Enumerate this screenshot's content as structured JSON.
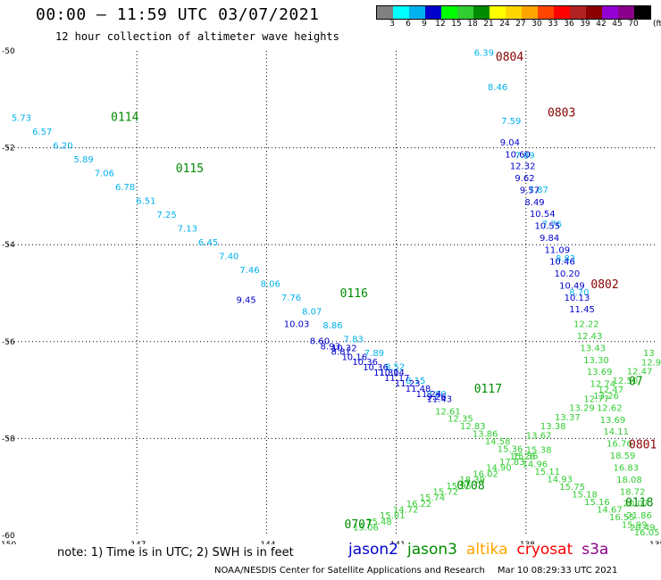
{
  "header": {
    "title": "00:00 – 11:59 UTC 03/07/2021",
    "subtitle": "12 hour collection of altimeter wave heights"
  },
  "legend": {
    "unit": "(ft)",
    "labels": [
      "3",
      "6",
      "9",
      "12",
      "15",
      "18",
      "21",
      "24",
      "27",
      "30",
      "33",
      "36",
      "39",
      "42",
      "45",
      "70"
    ],
    "colors": [
      "#808080",
      "#00ffff",
      "#00b2ee",
      "#0000cd",
      "#00ff00",
      "#32cd32",
      "#008b00",
      "#ffff00",
      "#ffd700",
      "#ffa500",
      "#ff4500",
      "#ff0000",
      "#b22222",
      "#8b0000",
      "#9400d3",
      "#8b008b",
      "#000000"
    ]
  },
  "map": {
    "lon_ticks": [
      "-150",
      "-147",
      "-144",
      "-141",
      "-138",
      "-135"
    ],
    "lat_ticks": [
      "-50",
      "-52",
      "-54",
      "-56",
      "-58",
      "-60"
    ],
    "lon_range": [
      -150,
      -135
    ],
    "lat_range": [
      -50,
      -60
    ],
    "time_labels": [
      {
        "text": "0114",
        "lon": -147.6,
        "lat": -51.45,
        "color": "#008b00"
      },
      {
        "text": "0115",
        "lon": -146.1,
        "lat": -52.5,
        "color": "#008b00"
      },
      {
        "text": "0116",
        "lon": -142.3,
        "lat": -55.08,
        "color": "#008b00"
      },
      {
        "text": "0117",
        "lon": -139.2,
        "lat": -57.05,
        "color": "#008b00"
      },
      {
        "text": "0804",
        "lon": -138.7,
        "lat": -50.2,
        "color": "#8b0000"
      },
      {
        "text": "0803",
        "lon": -137.5,
        "lat": -51.35,
        "color": "#8b0000"
      },
      {
        "text": "0802",
        "lon": -136.5,
        "lat": -54.9,
        "color": "#8b0000"
      },
      {
        "text": "0801",
        "lon": -134.7,
        "lat": -58.2,
        "color": "#8b0000"
      },
      {
        "text": "0708",
        "lon": -139.6,
        "lat": -59.05,
        "color": "#008b00"
      },
      {
        "text": "0707",
        "lon": -142.2,
        "lat": -59.85,
        "color": "#008b00"
      },
      {
        "text": "0118",
        "lon": -135.7,
        "lat": -59.4,
        "color": "#008b00"
      },
      {
        "text": "07",
        "lon": -134.7,
        "lat": -56.9,
        "color": "#008b00"
      }
    ],
    "tracks": [
      {
        "lon_start": -149.9,
        "lat_start": -51.45,
        "lon_end": -140.3,
        "lat_end": -57.15,
        "color": "#00b2ee",
        "values": [
          "5.73",
          "6.57",
          "6.20",
          "5.89",
          "7.06",
          "6.78",
          "6.51",
          "7.25",
          "7.13",
          "6.45",
          "7.40",
          "7.46",
          "8.06",
          "7.76",
          "8.07",
          "8.86",
          "7.83",
          "7.89",
          "8.52",
          "8.15",
          "8.80"
        ]
      },
      {
        "lon_start": -144.7,
        "lat_start": -55.2,
        "lon_end": -140.3,
        "lat_end": -57.2,
        "color": "#0000cd",
        "values": [
          "9.45",
          "10.03",
          "10.32",
          "10.14",
          "9.26"
        ]
      },
      {
        "lon_start": -143.0,
        "lat_start": -56.05,
        "lon_end": -140.3,
        "lat_end": -57.25,
        "color": "#0000cd",
        "values": [
          "8.60",
          "8.93",
          "8.81",
          "10.16",
          "10.36",
          "10.36",
          "11.30",
          "11.17",
          "11.23",
          "11.48",
          "11.24",
          "11.43"
        ]
      },
      {
        "lon_start": -140.1,
        "lat_start": -57.5,
        "lon_end": -135.5,
        "lat_end": -60.0,
        "color": "#32cd32",
        "values": [
          "12.61",
          "12.35",
          "12.83",
          "13.86",
          "14.58",
          "15.36",
          "15.26",
          "14.96",
          "15.11",
          "14.93",
          "15.75",
          "15.18",
          "15.16",
          "14.67",
          "16.55",
          "15.99",
          "16.05"
        ]
      },
      {
        "lon_start": -139.2,
        "lat_start": -50.1,
        "lon_end": -137.0,
        "lat_end": -55.05,
        "color": "#00b2ee",
        "values": [
          "6.39",
          "8.46",
          "7.59",
          "7.89",
          "7.87",
          "7.76",
          "8.83",
          "8.70"
        ]
      },
      {
        "lon_start": -138.6,
        "lat_start": -51.95,
        "lon_end": -137.0,
        "lat_end": -55.4,
        "color": "#0000cd",
        "values": [
          "9.04",
          "10.60",
          "12.32",
          "9.62",
          "9.57",
          "8.49",
          "10.54",
          "10.55",
          "9.84",
          "11.09",
          "10.46",
          "10.20",
          "10.49",
          "10.13",
          "11.45"
        ]
      },
      {
        "lon_start": -136.9,
        "lat_start": -55.7,
        "lon_end": -135.6,
        "lat_end": -59.9,
        "color": "#32cd32",
        "values": [
          "12.22",
          "12.43",
          "13.43",
          "13.30",
          "13.69",
          "12.74",
          "13.26",
          "12.62",
          "13.69",
          "14.11",
          "16.76",
          "18.59",
          "16.83",
          "18.08",
          "18.72",
          "20.07",
          "21.86",
          "20.49"
        ]
      },
      {
        "lon_start": -142.0,
        "lat_start": -59.9,
        "lon_end": -138.0,
        "lat_end": -58.3,
        "color": "#32cd32",
        "values": [
          "15.06",
          "15.48",
          "15.01",
          "14.72",
          "16.22",
          "15.74",
          "15.72",
          "15.95",
          "18.39",
          "16.02",
          "14.90",
          "17.83",
          "15.36",
          "15.38"
        ]
      },
      {
        "lon_start": -138.0,
        "lat_start": -58.0,
        "lon_end": -135.0,
        "lat_end": -56.3,
        "color": "#32cd32",
        "values": [
          "13.67",
          "13.38",
          "13.37",
          "13.29",
          "12.77",
          "12.47",
          "12.50",
          "12.47",
          "12.92",
          "13"
        ]
      }
    ]
  },
  "note": "note:  1) Time is in UTC; 2) SWH is in feet",
  "satellites": [
    {
      "name": "jason2",
      "color": "#0000cd"
    },
    {
      "name": "jason3",
      "color": "#008b00"
    },
    {
      "name": "altika",
      "color": "#ffa500"
    },
    {
      "name": "cryosat",
      "color": "#ff0000"
    },
    {
      "name": "s3a",
      "color": "#8b008b"
    }
  ],
  "credit": "NOAA/NESDIS Center for Satellite Applications and Research",
  "timestamp": "Mar 10 08:29:33 UTC 2021"
}
